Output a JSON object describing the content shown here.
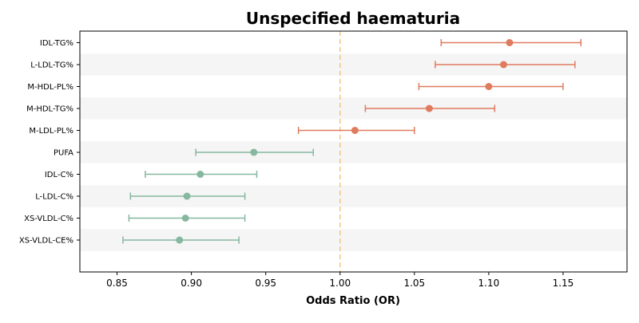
{
  "chart_data": {
    "type": "forest",
    "title": "Unspecified haematuria",
    "xlabel": "Odds Ratio (OR)",
    "ylabel": "",
    "xlim": [
      0.825,
      1.193
    ],
    "xticks": [
      "0.85",
      "0.90",
      "0.95",
      "1.00",
      "1.05",
      "1.10",
      "1.15"
    ],
    "reference_line": 1.0,
    "reference_line_style": "dashed",
    "grid": false,
    "banded_rows": true,
    "colors": {
      "positive": "#e07b5f",
      "negative": "#86b8a0",
      "reference": "#f3c77a",
      "band": "#f5f5f5"
    },
    "rows": [
      {
        "label": "IDL-TG%",
        "or": 1.114,
        "lower": 1.068,
        "upper": 1.162
      },
      {
        "label": "L-LDL-TG%",
        "or": 1.11,
        "lower": 1.064,
        "upper": 1.158
      },
      {
        "label": "M-HDL-PL%",
        "or": 1.1,
        "lower": 1.053,
        "upper": 1.15
      },
      {
        "label": "M-HDL-TG%",
        "or": 1.06,
        "lower": 1.017,
        "upper": 1.104
      },
      {
        "label": "M-LDL-PL%",
        "or": 1.01,
        "lower": 0.972,
        "upper": 1.05
      },
      {
        "label": "PUFA",
        "or": 0.942,
        "lower": 0.903,
        "upper": 0.982
      },
      {
        "label": "IDL-C%",
        "or": 0.906,
        "lower": 0.869,
        "upper": 0.944
      },
      {
        "label": "L-LDL-C%",
        "or": 0.897,
        "lower": 0.859,
        "upper": 0.936
      },
      {
        "label": "XS-VLDL-C%",
        "or": 0.896,
        "lower": 0.858,
        "upper": 0.936
      },
      {
        "label": "XS-VLDL-CE%",
        "or": 0.892,
        "lower": 0.854,
        "upper": 0.932
      }
    ]
  }
}
